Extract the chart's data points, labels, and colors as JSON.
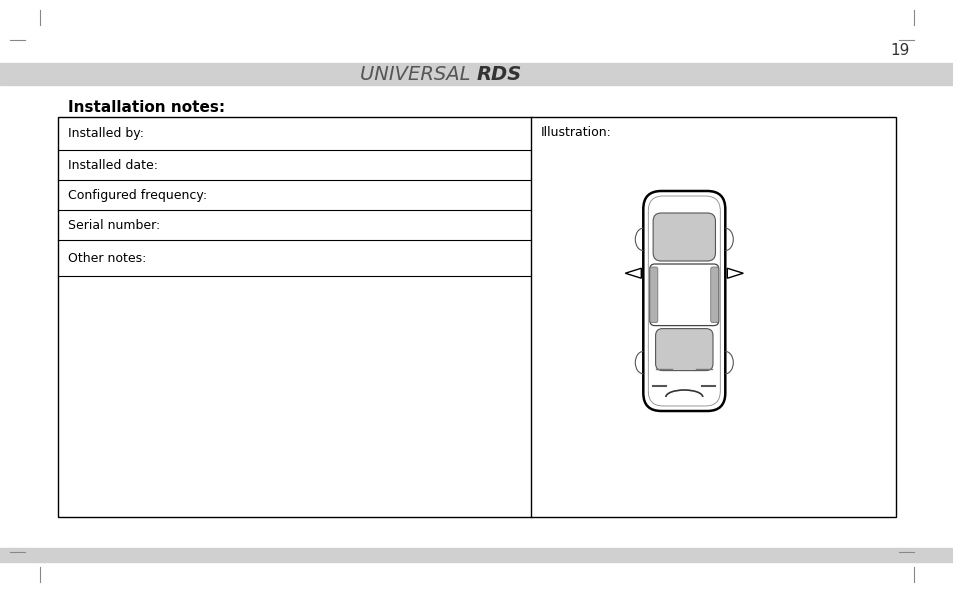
{
  "page_number": "19",
  "header_text_normal": "UNIVERSAL ",
  "header_text_bold": "RDS",
  "section_title": "Installation notes:",
  "left_rows": [
    "Installed by:",
    "Installed date:",
    "Configured frequency:",
    "Serial number:",
    "Other notes:"
  ],
  "right_label": "Illustration:",
  "bg_color": "#ffffff",
  "header_bar_color": "#d0d0d0",
  "footer_bar_color": "#d0d0d0",
  "table_border_color": "#000000",
  "text_color": "#000000",
  "header_text_color": "#a0a0a0",
  "corner_mark_color": "#000000"
}
